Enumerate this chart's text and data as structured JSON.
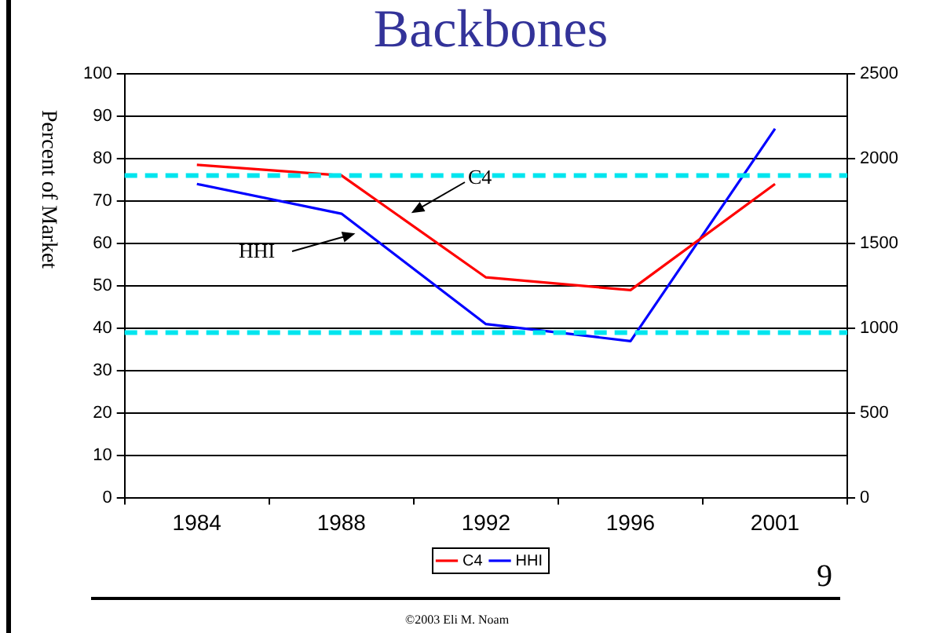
{
  "chart_data": {
    "type": "line",
    "title": "Backbones",
    "ylabel": "Percent of Market",
    "categories": [
      "1984",
      "1988",
      "1992",
      "1996",
      "2001"
    ],
    "series": [
      {
        "name": "C4",
        "color": "#ff0000",
        "values": [
          78.5,
          76,
          52,
          49,
          74
        ]
      },
      {
        "name": "HHI",
        "color": "#0000ff",
        "axis": "y2",
        "values": [
          1850,
          1675,
          1025,
          925,
          2175
        ]
      }
    ],
    "ylim": [
      0,
      100
    ],
    "yticks": [
      0,
      10,
      20,
      30,
      40,
      50,
      60,
      70,
      80,
      90,
      100
    ],
    "y2lim": [
      0,
      2500
    ],
    "y2ticks": [
      0,
      500,
      1000,
      1500,
      2000,
      2500
    ],
    "ref_lines": [
      {
        "axis": "y",
        "value": 76,
        "color": "#00e5ee",
        "line_style": "dashed"
      },
      {
        "axis": "y",
        "value": 39,
        "color": "#00e5ee",
        "line_style": "dashed"
      }
    ],
    "annotations": [
      "C4",
      "HHI",
      "©2003 Eli M. Noam",
      "9"
    ],
    "grid": "y",
    "legend": "bottom",
    "marker": "none",
    "line_style": "solid"
  }
}
